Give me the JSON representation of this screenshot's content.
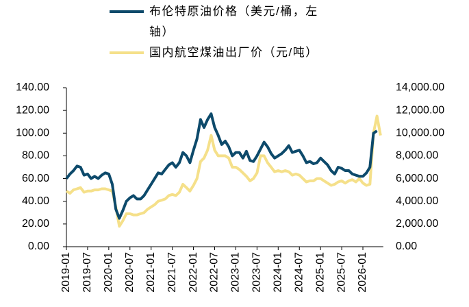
{
  "chart_data": {
    "type": "line",
    "categories": [
      "2019-01",
      null,
      null,
      null,
      null,
      null,
      "2019-07",
      null,
      null,
      null,
      null,
      null,
      "2020-01",
      null,
      null,
      null,
      null,
      null,
      "2020-07",
      null,
      null,
      null,
      null,
      null,
      "2021-01",
      null,
      null,
      null,
      null,
      null,
      "2021-07",
      null,
      null,
      null,
      null,
      null,
      "2022-01",
      null,
      null,
      null,
      null,
      null,
      "2022-07",
      null,
      null,
      null,
      null,
      null,
      "2023-01",
      null,
      null,
      null,
      null,
      null,
      "2023-07",
      null,
      null,
      null,
      null,
      null,
      "2024-01",
      null,
      null,
      null,
      null,
      null,
      "2024-07",
      null,
      null,
      null,
      null,
      null,
      "2025-01",
      null,
      null,
      null,
      null,
      null,
      "2025-07",
      null,
      null,
      null,
      null,
      null,
      "2026-01",
      null,
      null,
      null,
      null,
      null
    ],
    "series": [
      {
        "name": "布伦特原油价格（美元/桶，左轴）",
        "color": "#0d4a6b",
        "axis": "y",
        "values": [
          60,
          64,
          67,
          71,
          70,
          63,
          64,
          60,
          62,
          60,
          63,
          65,
          64,
          55,
          33,
          25,
          32,
          40,
          43,
          45,
          42,
          42,
          45,
          50,
          55,
          60,
          65,
          64,
          68,
          72,
          74,
          70,
          74,
          83,
          80,
          74,
          85,
          95,
          112,
          105,
          112,
          117,
          105,
          98,
          90,
          93,
          88,
          80,
          83,
          83,
          78,
          84,
          76,
          75,
          80,
          86,
          92,
          88,
          82,
          78,
          80,
          82,
          85,
          89,
          83,
          84,
          85,
          80,
          74,
          75,
          73,
          74,
          78,
          75,
          72,
          67,
          64,
          70,
          69,
          67,
          67,
          64,
          63,
          62,
          62,
          65,
          70,
          100,
          102,
          null
        ]
      },
      {
        "name": "国内航空煤油出厂价（元/吨）",
        "color": "#f5e08a",
        "axis": "y2",
        "values": [
          4900,
          4700,
          5000,
          5100,
          5200,
          4800,
          4900,
          4900,
          5000,
          5000,
          5100,
          5100,
          5000,
          4900,
          3500,
          1800,
          2300,
          2900,
          2900,
          2800,
          2800,
          2900,
          3000,
          3300,
          3500,
          3700,
          4000,
          4100,
          4200,
          4500,
          4600,
          4500,
          4800,
          5500,
          5200,
          4900,
          5400,
          6000,
          7500,
          7800,
          8500,
          9800,
          8500,
          8000,
          8000,
          8000,
          7800,
          7000,
          7000,
          6800,
          6500,
          6200,
          5800,
          6000,
          6500,
          8000,
          8000,
          7400,
          7000,
          6600,
          6700,
          6600,
          6700,
          6600,
          6300,
          6400,
          6300,
          6000,
          5700,
          5800,
          5800,
          6000,
          6000,
          5800,
          5600,
          5400,
          5500,
          5700,
          5800,
          5600,
          5800,
          5900,
          5700,
          6000,
          5600,
          5400,
          5500,
          10000,
          11500,
          9800
        ]
      }
    ],
    "ylim": [
      0,
      140
    ],
    "yticks": [
      {
        "value": 0,
        "label": "0.00"
      },
      {
        "value": 20,
        "label": "20.00"
      },
      {
        "value": 40,
        "label": "40.00"
      },
      {
        "value": 60,
        "label": "60.00"
      },
      {
        "value": 80,
        "label": "80.00"
      },
      {
        "value": 100,
        "label": "100.00"
      },
      {
        "value": 120,
        "label": "120.00"
      },
      {
        "value": 140,
        "label": "140.00"
      }
    ],
    "y2lim": [
      0,
      14000
    ],
    "y2ticks": [
      {
        "value": 0,
        "label": "0.00"
      },
      {
        "value": 2000,
        "label": "2,000.00"
      },
      {
        "value": 4000,
        "label": "4,000.00"
      },
      {
        "value": 6000,
        "label": "6,000.00"
      },
      {
        "value": 8000,
        "label": "8,000.00"
      },
      {
        "value": 10000,
        "label": "10,000.00"
      },
      {
        "value": 12000,
        "label": "12,000.00"
      },
      {
        "value": 14000,
        "label": "14,000.00"
      }
    ],
    "grid": false,
    "legend": "top"
  }
}
